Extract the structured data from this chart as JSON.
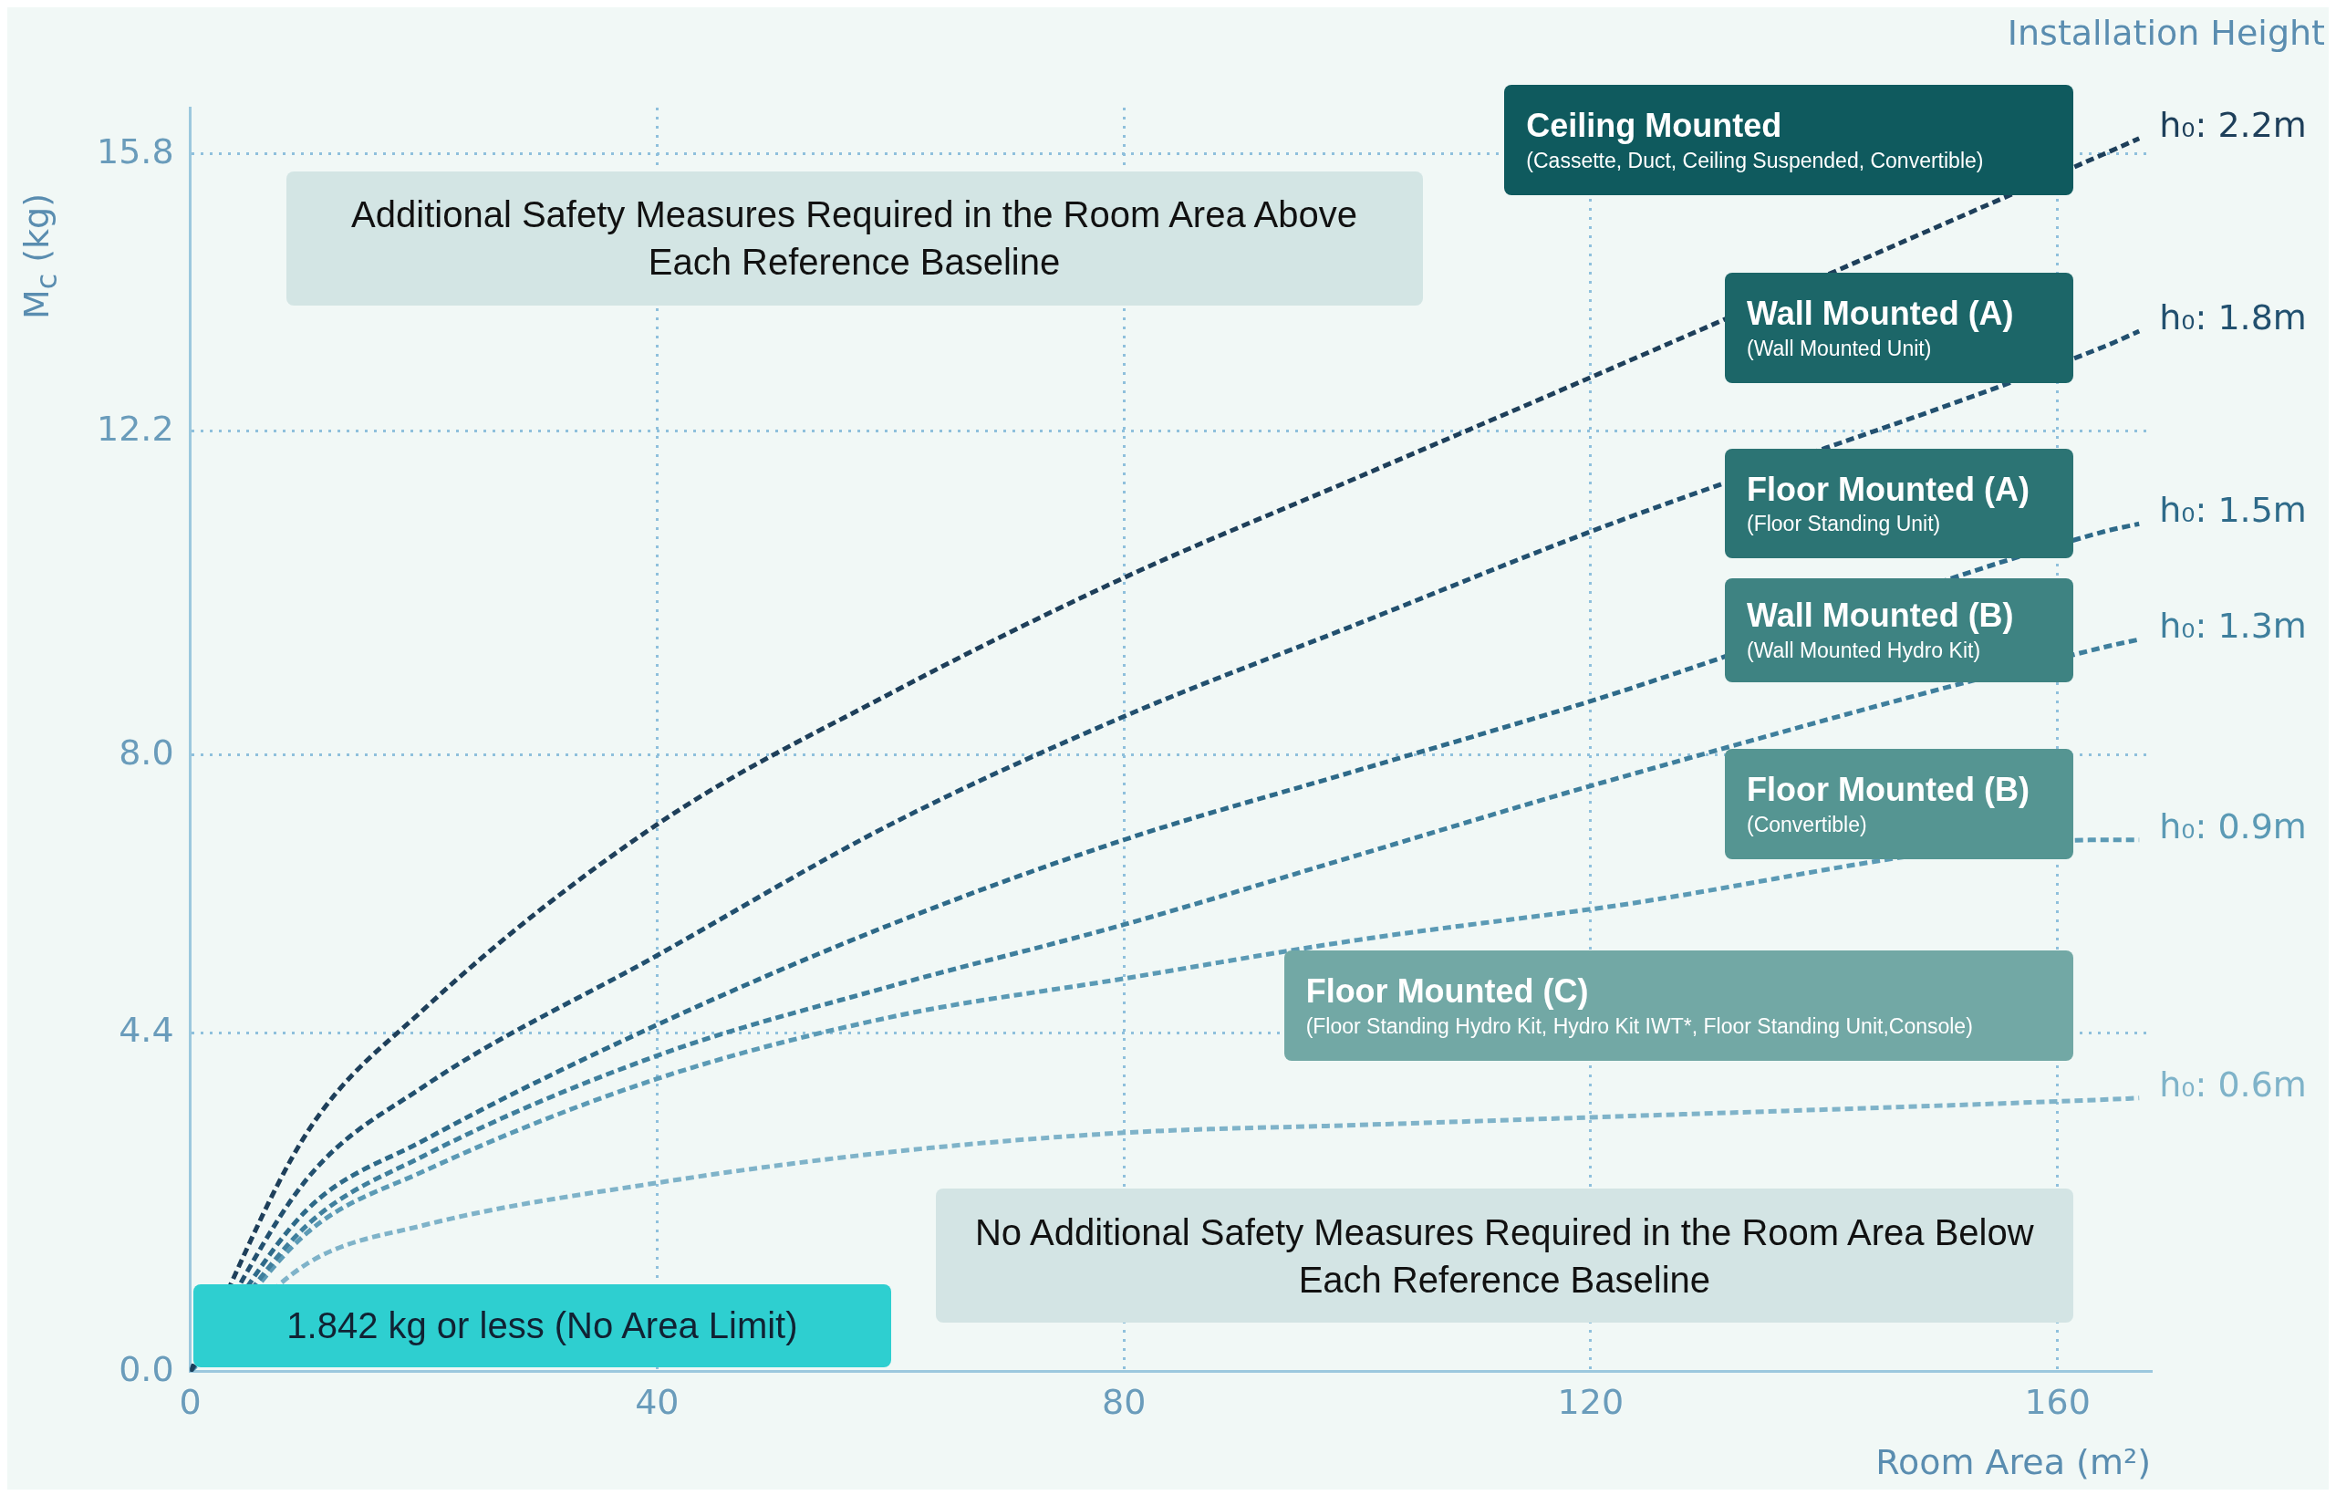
{
  "chart_data": {
    "type": "line",
    "xlabel": "Room Area (m²)",
    "ylabel": "M$_{c}$ (kg)",
    "legend_title": "Installation Height",
    "x": [
      0,
      10,
      20,
      40,
      60,
      80,
      100,
      120,
      164,
      167
    ],
    "xlim": [
      0,
      168
    ],
    "xticks": [
      0,
      40,
      80,
      120,
      160
    ],
    "ylim": [
      0,
      16.4
    ],
    "yticks": [
      {
        "value": 0,
        "label": "0.0"
      },
      4.4,
      {
        "value": 8,
        "label": "8.0"
      },
      12.2,
      15.8
    ],
    "grid": true,
    "legend": false,
    "marker": "none",
    "line_style": "dashed",
    "series": [
      {
        "name": "h₀: 2.2m",
        "color": "#1e3f5a",
        "values": [
          0,
          3.1,
          4.7,
          7.1,
          8.8,
          10.3,
          11.6,
          12.9,
          15.8,
          16.0
        ]
      },
      {
        "name": "h₀: 1.8m",
        "color": "#22506f",
        "values": [
          0,
          2.5,
          3.7,
          5.4,
          7.1,
          8.5,
          9.7,
          10.9,
          13.3,
          13.5
        ]
      },
      {
        "name": "h₀: 1.5m",
        "color": "#2e6a89",
        "values": [
          0,
          2.1,
          3.0,
          4.5,
          5.8,
          6.9,
          7.8,
          8.7,
          10.9,
          11.0
        ]
      },
      {
        "name": "h₀: 1.3m",
        "color": "#3f7f9d",
        "values": [
          0,
          1.9,
          2.8,
          4.1,
          5.0,
          5.8,
          6.7,
          7.6,
          9.4,
          9.5
        ]
      },
      {
        "name": "h₀: 0.9m",
        "color": "#5b9ab5",
        "values": [
          0,
          1.8,
          2.6,
          3.8,
          4.6,
          5.1,
          5.6,
          6.0,
          6.9,
          6.9
        ]
      },
      {
        "name": "h₀: 0.6m",
        "color": "#7fb3c9",
        "values": [
          0,
          1.4,
          1.9,
          2.45,
          2.85,
          3.1,
          3.2,
          3.3,
          3.53,
          3.55
        ]
      }
    ],
    "annotations": [
      "Additional Safety Measures Required in the Room Area Above Each Reference Baseline",
      "Ceiling Mounted",
      "(Cassette, Duct, Ceiling Suspended, Convertible)",
      "Wall Mounted (A)",
      "(Wall Mounted Unit)",
      "Floor Mounted (A)",
      "(Floor Standing Unit)",
      "Wall Mounted (B)",
      "(Wall Mounted Hydro Kit)",
      "Floor Mounted (B)",
      "(Convertible)",
      "Floor Mounted (C)",
      "(Floor Standing Hydro Kit, Hydro Kit IWT*, Floor Standing Unit,Console)",
      "No Additional Safety Measures Required in the Room Area Below Each Reference Baseline",
      "1.842 kg or less (No Area Limit)"
    ]
  }
}
